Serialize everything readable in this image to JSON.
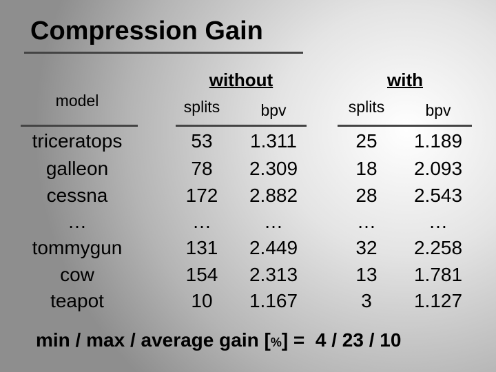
{
  "title": "Compression Gain",
  "table": {
    "header": {
      "model": "model",
      "groups": [
        {
          "label": "without",
          "columns": [
            "splits",
            "bpv"
          ]
        },
        {
          "label": "with",
          "columns": [
            "splits",
            "bpv"
          ]
        }
      ]
    },
    "rows": [
      [
        "triceratops",
        "53",
        "1.311",
        "25",
        "1.189"
      ],
      [
        "galleon",
        "78",
        "2.309",
        "18",
        "2.093"
      ],
      [
        "cessna",
        "172",
        "2.882",
        "28",
        "2.543"
      ],
      [
        "…",
        "…",
        "…",
        "…",
        "…"
      ],
      [
        "tommygun",
        "131",
        "2.449",
        "32",
        "2.258"
      ],
      [
        "cow",
        "154",
        "2.313",
        "13",
        "1.781"
      ],
      [
        "teapot",
        "10",
        "1.167",
        "3",
        "1.127"
      ]
    ]
  },
  "footer": {
    "label": "min / max / average gain [",
    "unit": "%",
    "close": "] =",
    "value": "4 / 23 / 10"
  }
}
